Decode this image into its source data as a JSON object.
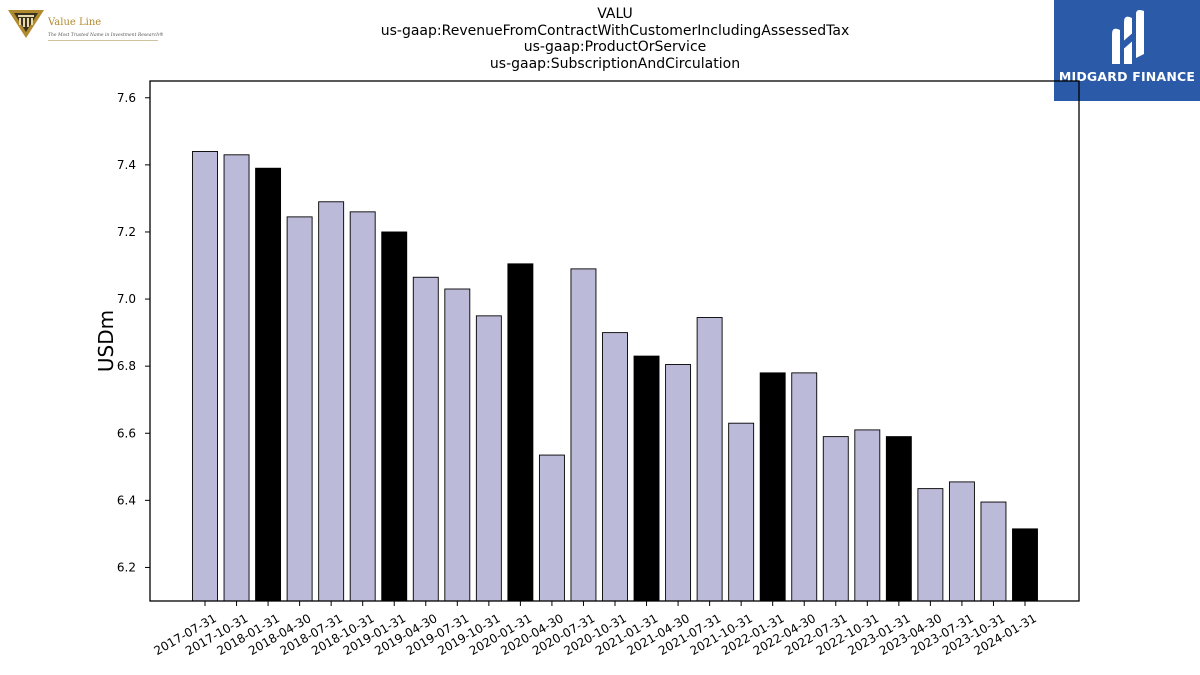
{
  "header": {
    "title_lines": [
      "VALU",
      "us-gaap:RevenueFromContractWithCustomerIncludingAssessedTax",
      "us-gaap:ProductOrService",
      "us-gaap:SubscriptionAndCirculation"
    ],
    "logo_left": {
      "name": "Value Line",
      "tagline": "The Most Trusted Name in Investment Research®",
      "icon": "value-line-emblem-icon"
    },
    "logo_right": {
      "name": "MIDGARD FINANCE",
      "icon": "midgard-m-icon"
    }
  },
  "colors": {
    "normal_bar": "#bcbad9",
    "highlight_bar": "#000000",
    "edge": "#000000",
    "logo_blue": "#2b5aa8",
    "logo_gold": "#b08a2e"
  },
  "chart_data": {
    "type": "bar",
    "ylabel": "USDm",
    "xlabel": "",
    "ylim": [
      6.1,
      7.65
    ],
    "yticks": [
      6.2,
      6.4,
      6.6,
      6.8,
      7.0,
      7.2,
      7.4,
      7.6
    ],
    "grid": false,
    "categories": [
      "2017-07-31",
      "2017-10-31",
      "2018-01-31",
      "2018-04-30",
      "2018-07-31",
      "2018-10-31",
      "2019-01-31",
      "2019-04-30",
      "2019-07-31",
      "2019-10-31",
      "2020-01-31",
      "2020-04-30",
      "2020-07-31",
      "2020-10-31",
      "2021-01-31",
      "2021-04-30",
      "2021-07-31",
      "2021-10-31",
      "2022-01-31",
      "2022-04-30",
      "2022-07-31",
      "2022-10-31",
      "2023-01-31",
      "2023-04-30",
      "2023-07-31",
      "2023-10-31",
      "2024-01-31"
    ],
    "values": [
      7.44,
      7.43,
      7.39,
      7.245,
      7.29,
      7.26,
      7.2,
      7.065,
      7.03,
      6.95,
      7.105,
      6.535,
      7.09,
      6.9,
      6.83,
      6.805,
      6.945,
      6.63,
      6.78,
      6.78,
      6.59,
      6.61,
      6.59,
      6.435,
      6.455,
      6.395,
      6.315
    ],
    "highlighted": [
      false,
      false,
      true,
      false,
      false,
      false,
      true,
      false,
      false,
      false,
      true,
      false,
      false,
      false,
      true,
      false,
      false,
      false,
      true,
      false,
      false,
      false,
      true,
      false,
      false,
      false,
      true
    ]
  }
}
